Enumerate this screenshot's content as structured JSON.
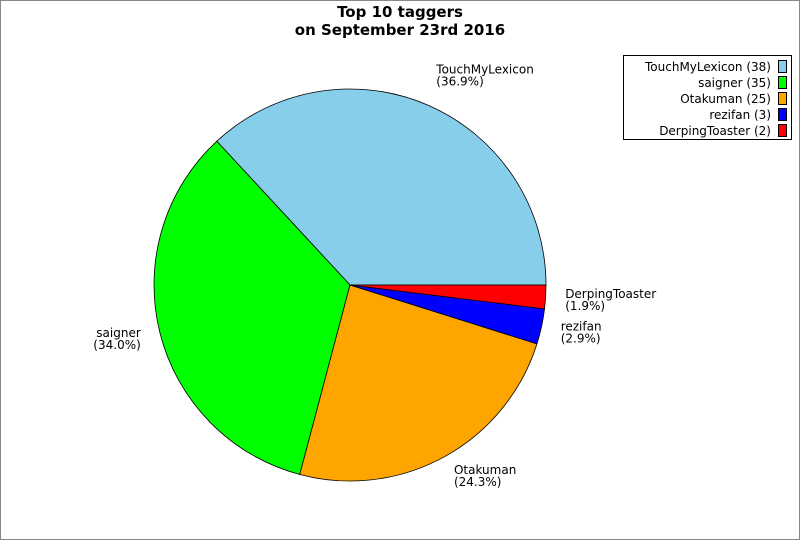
{
  "chart_data": {
    "type": "pie",
    "title": "Top 10 taggers",
    "subtitle": "on September 23rd 2016",
    "categories": [
      "TouchMyLexicon",
      "saigner",
      "Otakuman",
      "rezifan",
      "DerpingToaster"
    ],
    "values": [
      38,
      35,
      25,
      3,
      2
    ],
    "percent_labels": [
      "(36.9%)",
      "(34.0%)",
      "(24.3%)",
      "(2.9%)",
      "(1.9%)"
    ],
    "legend_labels": [
      "TouchMyLexicon (38)",
      "saigner (35)",
      "Otakuman (25)",
      "rezifan (3)",
      "DerpingToaster (2)"
    ],
    "colors": [
      "#87ceeb",
      "#00ff00",
      "#ffa500",
      "#0000ff",
      "#ff0000"
    ],
    "legend": "upper right"
  }
}
